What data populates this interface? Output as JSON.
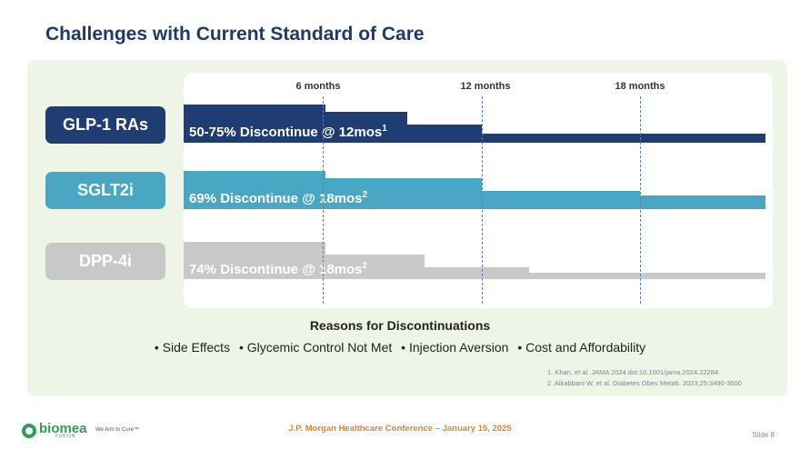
{
  "title": "Challenges with Current Standard of Care",
  "timeline": {
    "months": [
      "6 months",
      "12 months",
      "18 months"
    ]
  },
  "rows": [
    {
      "label": "GLP-1 RAs",
      "label_color": "#1f3d73",
      "bar_color": "#1f3d73",
      "annotation": "50-75% Discontinue @ 12mos",
      "ref": "1"
    },
    {
      "label": "SGLT2i",
      "label_color": "#4aa7c4",
      "bar_color": "#4aa7c4",
      "annotation": "69% Discontinue @ 18mos",
      "ref": "2"
    },
    {
      "label": "DPP-4i",
      "label_color": "#c8c8c8",
      "bar_color": "#c8c8c8",
      "annotation": "74% Discontinue @ 18mos",
      "ref": "2"
    }
  ],
  "reasons": {
    "title": "Reasons for Discontinuations",
    "items": [
      "Side Effects",
      "Glycemic Control Not Met",
      "Injection Aversion",
      "Cost and Affordability"
    ]
  },
  "references": [
    "1. Khan, et al. JAMA 2024 doi:10.1001/jama.2024.22284.",
    "2. Alkabbani W, et al. Diabetes Obes Metab. 2023;25:3490-3500"
  ],
  "footer": {
    "logo_text": "biomea",
    "logo_sub": "FUSION",
    "tagline": "We Aim to Cure™",
    "conference": "J.P. Morgan Healthcare Conference – January 15, 2025",
    "slide": "Slide 8"
  }
}
